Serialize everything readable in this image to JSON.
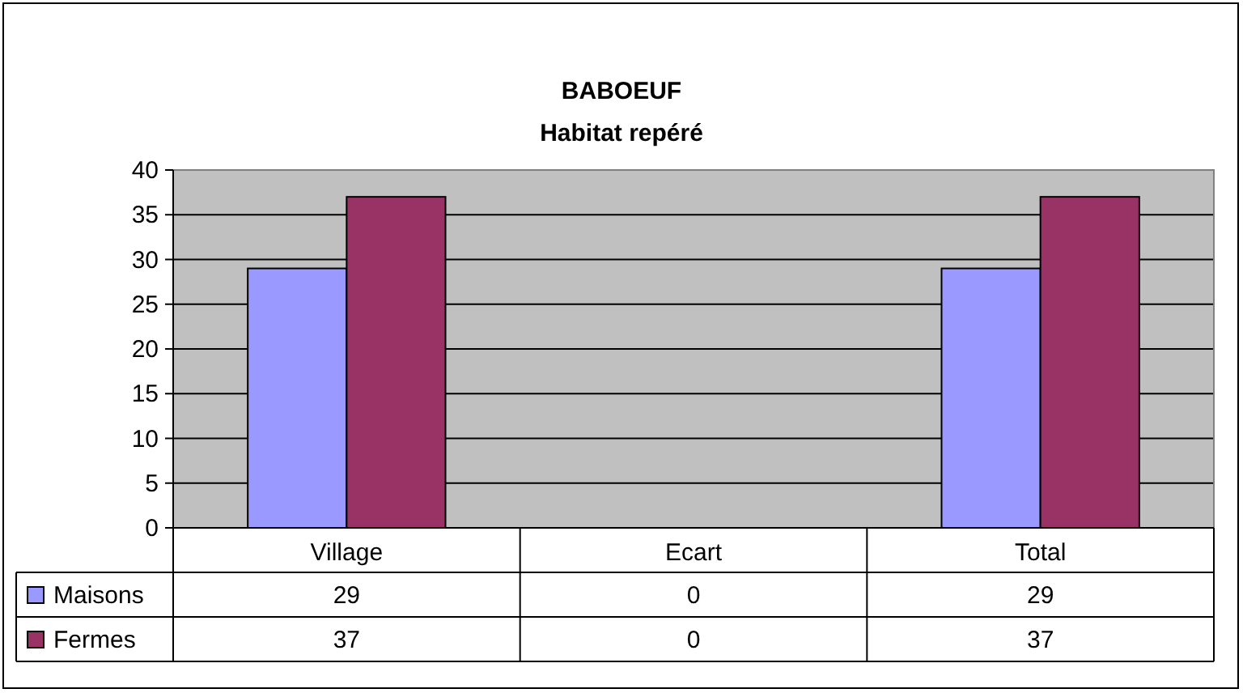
{
  "chart_data": {
    "type": "bar",
    "title": "BABOEUF",
    "subtitle": "Habitat repéré",
    "categories": [
      "Village",
      "Ecart",
      "Total"
    ],
    "series": [
      {
        "name": "Maisons",
        "color": "#9999ff",
        "values": [
          29,
          0,
          29
        ]
      },
      {
        "name": "Fermes",
        "color": "#993366",
        "values": [
          37,
          0,
          37
        ]
      }
    ],
    "ylim": [
      0,
      40
    ],
    "yticks": [
      0,
      5,
      10,
      15,
      20,
      25,
      30,
      35,
      40
    ],
    "grid": "y",
    "data_labels": true,
    "legend": "bottom left"
  }
}
